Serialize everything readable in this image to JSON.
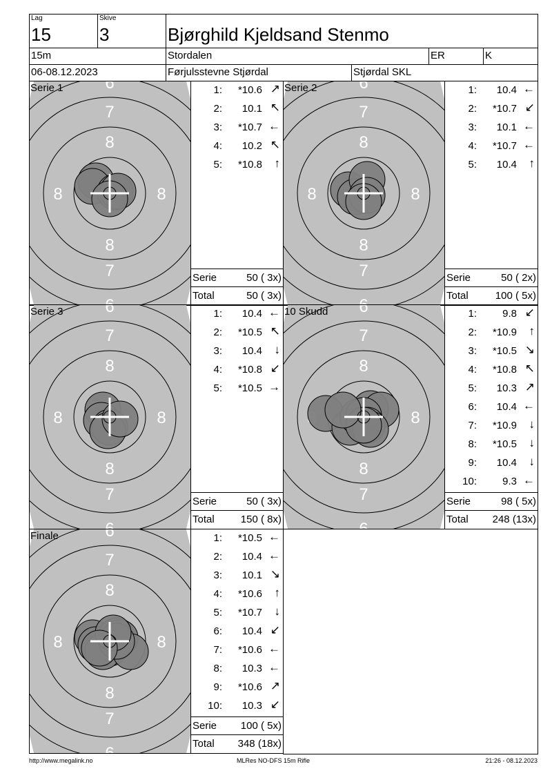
{
  "header": {
    "lag_label": "Lag",
    "lag": "15",
    "skive_label": "Skive",
    "skive": "3",
    "name": "Bjørghild Kjeldsand Stenmo",
    "distance": "15m",
    "club": "Stordalen",
    "class": "ER",
    "gender": "K",
    "date": "06-08.12.2023",
    "event": "Førjulsstevne Stjørdal",
    "organizer": "Stjørdal SKL"
  },
  "colors": {
    "target_bg": "#c0c0c0",
    "shot": "#808080",
    "ring": "#000000"
  },
  "panels": [
    {
      "title": "Serie 1",
      "shots": [
        {
          "n": "1:",
          "v": "*10.6",
          "arrow": "↗"
        },
        {
          "n": "2:",
          "v": "10.1",
          "arrow": "↖"
        },
        {
          "n": "3:",
          "v": "*10.7",
          "arrow": "←"
        },
        {
          "n": "4:",
          "v": "10.2",
          "arrow": "↖"
        },
        {
          "n": "5:",
          "v": "*10.8",
          "arrow": "↑"
        }
      ],
      "serie_label": "Serie",
      "serie": "50 ( 3x)",
      "total_label": "Total",
      "total": "50 ( 3x)"
    },
    {
      "title": "Serie 2",
      "shots": [
        {
          "n": "1:",
          "v": "10.4",
          "arrow": "←"
        },
        {
          "n": "2:",
          "v": "*10.7",
          "arrow": "↙"
        },
        {
          "n": "3:",
          "v": "10.1",
          "arrow": "←"
        },
        {
          "n": "4:",
          "v": "*10.7",
          "arrow": "←"
        },
        {
          "n": "5:",
          "v": "10.4",
          "arrow": "↑"
        }
      ],
      "serie_label": "Serie",
      "serie": "50 ( 2x)",
      "total_label": "Total",
      "total": "100 ( 5x)"
    },
    {
      "title": "Serie 3",
      "shots": [
        {
          "n": "1:",
          "v": "10.4",
          "arrow": "←"
        },
        {
          "n": "2:",
          "v": "*10.5",
          "arrow": "↖"
        },
        {
          "n": "3:",
          "v": "10.4",
          "arrow": "↓"
        },
        {
          "n": "4:",
          "v": "*10.8",
          "arrow": "↙"
        },
        {
          "n": "5:",
          "v": "*10.5",
          "arrow": "→"
        }
      ],
      "serie_label": "Serie",
      "serie": "50 ( 3x)",
      "total_label": "Total",
      "total": "150 ( 8x)"
    },
    {
      "title": "10 Skudd",
      "shots": [
        {
          "n": "1:",
          "v": "9.8",
          "arrow": "↙"
        },
        {
          "n": "2:",
          "v": "*10.9",
          "arrow": "↑"
        },
        {
          "n": "3:",
          "v": "*10.5",
          "arrow": "↘"
        },
        {
          "n": "4:",
          "v": "*10.8",
          "arrow": "↖"
        },
        {
          "n": "5:",
          "v": "10.3",
          "arrow": "↗"
        },
        {
          "n": "6:",
          "v": "10.4",
          "arrow": "←"
        },
        {
          "n": "7:",
          "v": "*10.9",
          "arrow": "↓"
        },
        {
          "n": "8:",
          "v": "*10.5",
          "arrow": "↓"
        },
        {
          "n": "9:",
          "v": "10.4",
          "arrow": "↓"
        },
        {
          "n": "10:",
          "v": "9.3",
          "arrow": "←"
        }
      ],
      "serie_label": "Serie",
      "serie": "98 ( 5x)",
      "total_label": "Total",
      "total": "248 (13x)"
    },
    {
      "title": "Finale",
      "shots": [
        {
          "n": "1:",
          "v": "*10.5",
          "arrow": "←"
        },
        {
          "n": "2:",
          "v": "10.4",
          "arrow": "←"
        },
        {
          "n": "3:",
          "v": "10.1",
          "arrow": "↘"
        },
        {
          "n": "4:",
          "v": "*10.6",
          "arrow": "↑"
        },
        {
          "n": "5:",
          "v": "*10.7",
          "arrow": "↓"
        },
        {
          "n": "6:",
          "v": "10.4",
          "arrow": "↙"
        },
        {
          "n": "7:",
          "v": "*10.6",
          "arrow": "←"
        },
        {
          "n": "8:",
          "v": "10.3",
          "arrow": "←"
        },
        {
          "n": "9:",
          "v": "*10.6",
          "arrow": "↗"
        },
        {
          "n": "10:",
          "v": "10.3",
          "arrow": "↙"
        }
      ],
      "serie_label": "Serie",
      "serie": "100 ( 5x)",
      "total_label": "Total",
      "total": "348 (18x)"
    }
  ],
  "footer": {
    "left": "http://www.megalink.no",
    "center": "MLRes NO-DFS 15m Rifle",
    "right": "21:26 - 08.12.2023"
  }
}
